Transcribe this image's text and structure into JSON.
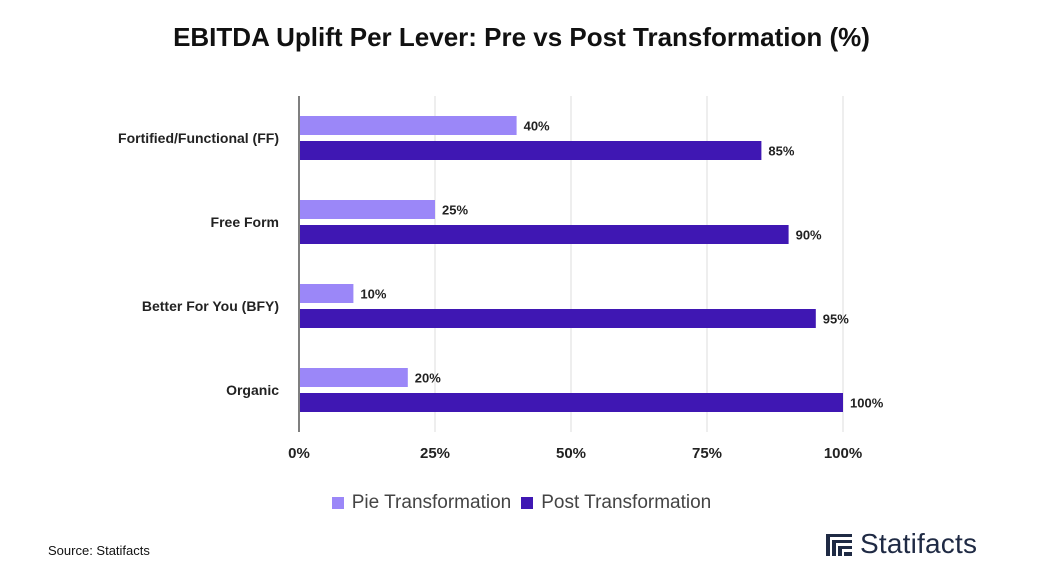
{
  "chart_data": {
    "type": "bar",
    "orientation": "horizontal",
    "title": "EBITDA Uplift Per Lever: Pre vs Post Transformation (%)",
    "categories": [
      "Fortified/Functional (FF)",
      "Free Form",
      "Better For You (BFY)",
      "Organic"
    ],
    "series": [
      {
        "name": "Pie Transformation",
        "values": [
          40,
          25,
          10,
          20
        ],
        "data_labels": [
          "40%",
          "25%",
          "10%",
          "20%"
        ],
        "color": "#9b87f8"
      },
      {
        "name": "Post Transformation",
        "values": [
          85,
          90,
          95,
          100
        ],
        "data_labels": [
          "85%",
          "90%",
          "95%",
          "100%"
        ],
        "color": "#3f17b3"
      }
    ],
    "xlim": [
      0,
      100
    ],
    "x_ticks": [
      0,
      25,
      50,
      75,
      100
    ],
    "x_tick_labels": [
      "0%",
      "25%",
      "50%",
      "75%",
      "100%"
    ],
    "grid": true,
    "legend_position": "bottom"
  },
  "footer": {
    "source": "Source: Statifacts",
    "brand": "Statifacts",
    "brand_icon": "statifacts-logo-icon",
    "brand_color": "#1f2a44"
  }
}
